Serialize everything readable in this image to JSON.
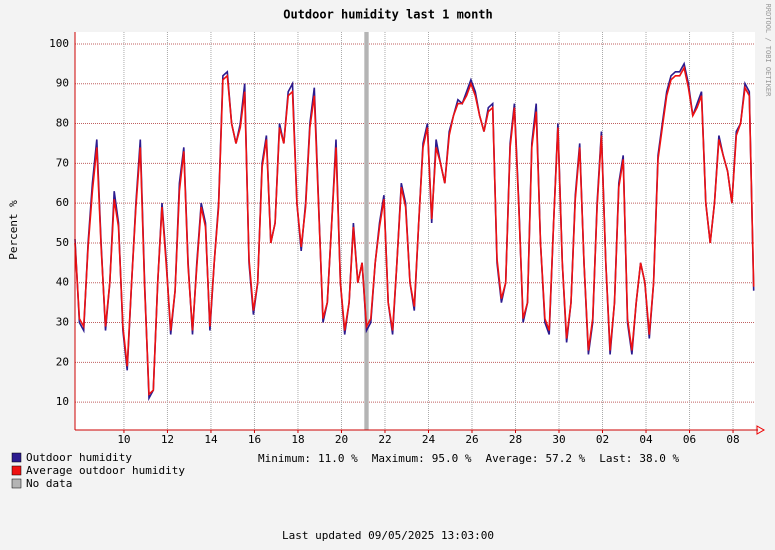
{
  "chart_data": {
    "type": "line",
    "title": "Outdoor humidity last 1 month",
    "y_label": "Percent  %",
    "watermark": "RRDTOOL / TOBI OETIKER",
    "x": [
      0,
      0.2,
      0.4,
      0.6,
      0.8,
      1,
      1.2,
      1.4,
      1.6,
      1.8,
      2,
      2.2,
      2.4,
      2.6,
      2.8,
      3,
      3.2,
      3.4,
      3.6,
      3.8,
      4,
      4.2,
      4.4,
      4.6,
      4.8,
      5,
      5.2,
      5.4,
      5.6,
      5.8,
      6,
      6.2,
      6.4,
      6.6,
      6.8,
      7,
      7.2,
      7.4,
      7.6,
      7.8,
      8,
      8.2,
      8.4,
      8.6,
      8.8,
      9,
      9.2,
      9.4,
      9.6,
      9.8,
      10,
      10.2,
      10.4,
      10.6,
      10.8,
      11,
      11.2,
      11.4,
      11.6,
      11.8,
      12,
      12.2,
      12.4,
      12.6,
      12.8,
      13,
      13.2,
      13.4,
      13.6,
      13.8,
      14,
      14.2,
      14.4,
      14.6,
      14.8,
      15,
      15.2,
      15.4,
      15.6,
      15.8,
      16,
      16.2,
      16.4,
      16.6,
      16.8,
      17,
      17.2,
      17.4,
      17.6,
      17.8,
      18,
      18.2,
      18.4,
      18.6,
      18.8,
      19,
      19.2,
      19.4,
      19.6,
      19.8,
      20,
      20.2,
      20.4,
      20.6,
      20.8,
      21,
      21.2,
      21.4,
      21.6,
      21.8,
      22,
      22.2,
      22.4,
      22.6,
      22.8,
      23,
      23.2,
      23.4,
      23.6,
      23.8,
      24,
      24.2,
      24.4,
      24.6,
      24.8,
      25,
      25.2,
      25.4,
      25.6,
      25.8,
      26,
      26.2,
      26.4,
      26.6,
      26.8,
      27,
      27.2,
      27.4,
      27.6,
      27.8,
      28,
      28.2,
      28.4,
      28.6,
      28.8,
      29,
      29.2,
      29.4,
      29.6,
      29.8,
      30,
      30.2,
      30.4,
      30.6,
      30.8,
      31,
      31.2
    ],
    "series": [
      {
        "name": "Outdoor humidity",
        "color": "#2c1b8f",
        "values": [
          51,
          30,
          28,
          50,
          65,
          76,
          50,
          28,
          40,
          63,
          55,
          28,
          18,
          40,
          60,
          76,
          40,
          11,
          13,
          40,
          60,
          45,
          27,
          38,
          65,
          74,
          45,
          27,
          45,
          60,
          55,
          28,
          45,
          60,
          92,
          93,
          80,
          75,
          80,
          90,
          45,
          32,
          40,
          70,
          77,
          50,
          55,
          80,
          75,
          88,
          90,
          60,
          48,
          60,
          80,
          89,
          60,
          30,
          35,
          55,
          76,
          40,
          27,
          35,
          55,
          40,
          45,
          28,
          30,
          45,
          55,
          62,
          35,
          27,
          45,
          65,
          60,
          40,
          33,
          55,
          75,
          80,
          55,
          76,
          70,
          65,
          78,
          82,
          86,
          85,
          88,
          91,
          88,
          82,
          78,
          84,
          85,
          45,
          35,
          40,
          75,
          85,
          60,
          30,
          35,
          75,
          85,
          50,
          30,
          27,
          55,
          80,
          45,
          25,
          35,
          62,
          75,
          45,
          22,
          30,
          60,
          78,
          45,
          22,
          35,
          65,
          72,
          30,
          22,
          35,
          45,
          40,
          26,
          40,
          72,
          80,
          88,
          92,
          93,
          93,
          95,
          90,
          82,
          85,
          88,
          60,
          50,
          60,
          77,
          72,
          68,
          60,
          78,
          80,
          90,
          88,
          38
        ]
      },
      {
        "name": "Average outdoor humidity",
        "color": "#ee1111",
        "values": [
          50,
          31,
          29,
          49,
          63,
          74,
          49,
          29,
          40,
          61,
          54,
          29,
          19,
          40,
          59,
          74,
          39,
          12,
          13,
          40,
          59,
          44,
          28,
          38,
          63,
          73,
          44,
          28,
          44,
          59,
          54,
          29,
          45,
          59,
          91,
          92,
          80,
          75,
          79,
          88,
          46,
          33,
          40,
          69,
          76,
          50,
          55,
          79,
          75,
          87,
          88,
          60,
          49,
          59,
          79,
          87,
          59,
          31,
          35,
          55,
          74,
          40,
          28,
          35,
          54,
          40,
          45,
          29,
          31,
          45,
          54,
          61,
          35,
          28,
          45,
          64,
          59,
          40,
          34,
          55,
          74,
          79,
          56,
          74,
          70,
          65,
          77,
          82,
          85,
          85,
          87,
          90,
          87,
          82,
          78,
          83,
          84,
          46,
          36,
          40,
          74,
          84,
          59,
          31,
          35,
          74,
          83,
          50,
          31,
          28,
          55,
          79,
          45,
          26,
          35,
          61,
          74,
          45,
          23,
          31,
          59,
          77,
          45,
          23,
          35,
          64,
          71,
          31,
          23,
          35,
          45,
          40,
          27,
          40,
          71,
          79,
          87,
          91,
          92,
          92,
          94,
          89,
          82,
          84,
          87,
          60,
          50,
          60,
          76,
          72,
          68,
          60,
          77,
          80,
          89,
          87,
          39
        ]
      }
    ],
    "no_data": {
      "name": "No data",
      "color": "#b4b4b4",
      "start": 13.3,
      "end": 13.5
    },
    "xlim": [
      0,
      31.26
    ],
    "xticks": [
      {
        "value": 2.25,
        "label": "10"
      },
      {
        "value": 4.25,
        "label": "12"
      },
      {
        "value": 6.25,
        "label": "14"
      },
      {
        "value": 8.25,
        "label": "16"
      },
      {
        "value": 10.25,
        "label": "18"
      },
      {
        "value": 12.25,
        "label": "20"
      },
      {
        "value": 14.25,
        "label": "22"
      },
      {
        "value": 16.25,
        "label": "24"
      },
      {
        "value": 18.25,
        "label": "26"
      },
      {
        "value": 20.25,
        "label": "28"
      },
      {
        "value": 22.25,
        "label": "30"
      },
      {
        "value": 24.25,
        "label": "02"
      },
      {
        "value": 26.25,
        "label": "04"
      },
      {
        "value": 28.25,
        "label": "06"
      },
      {
        "value": 30.25,
        "label": "08"
      }
    ],
    "ylim": [
      3,
      103
    ],
    "yticks": [
      10,
      20,
      30,
      40,
      50,
      60,
      70,
      80,
      90,
      100
    ],
    "grid": true,
    "stats": [
      {
        "label": "Minimum:",
        "value": "11.0 %"
      },
      {
        "label": "Maximum:",
        "value": "95.0 %"
      },
      {
        "label": "Average:",
        "value": "57.2 %"
      },
      {
        "label": "Last:",
        "value": "38.0 %"
      }
    ],
    "footer": "Last updated 09/05/2025 13:03:00"
  }
}
